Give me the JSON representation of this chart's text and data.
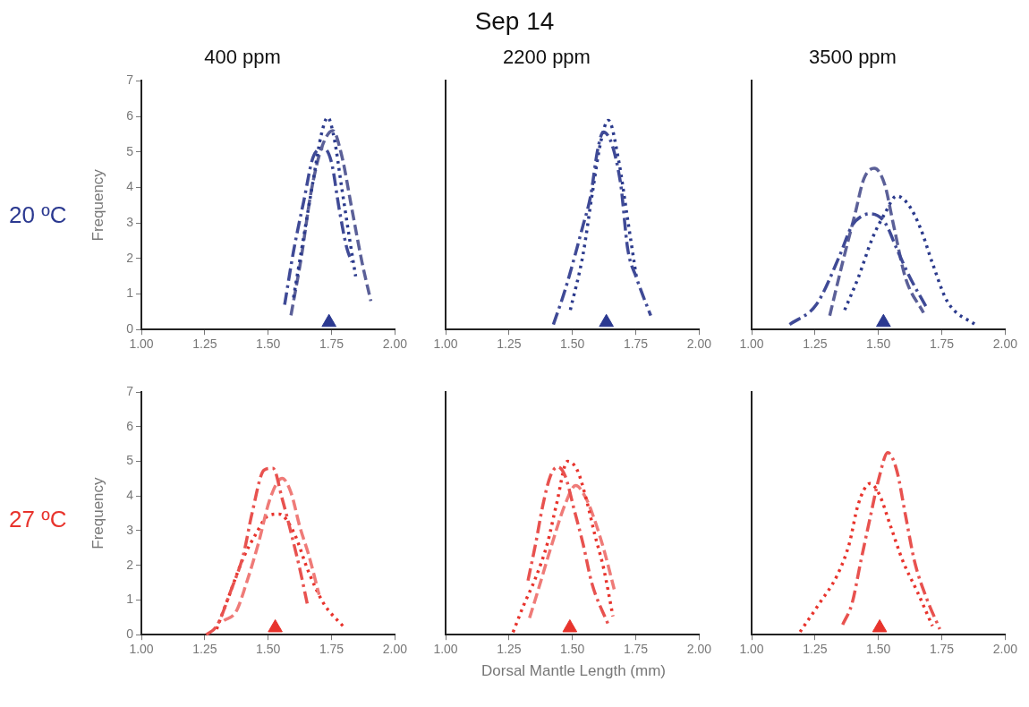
{
  "chart_data": [
    {
      "type": "line",
      "title": "400 ppm",
      "ylabel": "Frequency",
      "annotations": [
        "Sep 14",
        "20 ºC"
      ],
      "xlim": [
        1.0,
        2.0
      ],
      "xticks": [
        {
          "value": 1.0,
          "label": "1.00"
        },
        {
          "value": 1.25,
          "label": "1.25"
        },
        {
          "value": 1.5,
          "label": "1.50"
        },
        {
          "value": 1.75,
          "label": "1.75"
        },
        {
          "value": 2.0,
          "label": "2.00"
        }
      ],
      "ylim": [
        0,
        7
      ],
      "yticks": [
        0,
        1,
        2,
        3,
        4,
        5,
        6,
        7
      ],
      "series": [
        {
          "type": "line",
          "line_style": "dotted",
          "color": "#2b3a8c",
          "x": [
            1.6,
            1.64,
            1.68,
            1.71,
            1.735,
            1.76,
            1.79,
            1.82,
            1.845
          ],
          "values": [
            0.9,
            2.6,
            4.3,
            5.5,
            5.97,
            5.4,
            4.0,
            2.6,
            1.5
          ]
        },
        {
          "type": "line",
          "line_style": "dashed",
          "color": "#5b6098",
          "x": [
            1.59,
            1.63,
            1.67,
            1.71,
            1.755,
            1.79,
            1.83,
            1.87,
            1.905
          ],
          "values": [
            0.4,
            2.0,
            3.9,
            5.1,
            5.6,
            4.9,
            3.4,
            1.9,
            0.8
          ]
        },
        {
          "type": "line",
          "line_style": "dashdot",
          "color": "#3f4a96",
          "x": [
            1.565,
            1.6,
            1.64,
            1.68,
            1.72,
            1.75,
            1.78,
            1.81,
            1.83
          ],
          "values": [
            0.7,
            2.2,
            3.6,
            4.9,
            5.1,
            4.7,
            3.4,
            2.3,
            1.9
          ]
        },
        {
          "type": "scatter",
          "marker": "triangle",
          "color": "#2b3990",
          "x": [
            1.74
          ],
          "values": [
            0.2
          ]
        }
      ]
    },
    {
      "type": "line",
      "title": "2200 ppm",
      "tick_labels": "x",
      "xlim": [
        1.0,
        2.0
      ],
      "xticks": [
        {
          "value": 1.0,
          "label": "1.00"
        },
        {
          "value": 1.25,
          "label": "1.25"
        },
        {
          "value": 1.5,
          "label": "1.50"
        },
        {
          "value": 1.75,
          "label": "1.75"
        },
        {
          "value": 2.0,
          "label": "2.00"
        }
      ],
      "ylim": [
        0,
        7
      ],
      "yticks": [
        0,
        1,
        2,
        3,
        4,
        5,
        6,
        7
      ],
      "series": [
        {
          "type": "line",
          "line_style": "dashdot",
          "color": "#3f4a96",
          "x": [
            1.425,
            1.472,
            1.542,
            1.572,
            1.6,
            1.622,
            1.689,
            1.718,
            1.753,
            1.809
          ],
          "values": [
            0.14,
            1.13,
            2.93,
            3.76,
            5.07,
            5.56,
            4.17,
            2.28,
            1.45,
            0.39
          ]
        },
        {
          "type": "line",
          "line_style": "dotted",
          "color": "#2b3a8c",
          "x": [
            1.492,
            1.542,
            1.577,
            1.613,
            1.642,
            1.683,
            1.718,
            1.753
          ],
          "values": [
            0.55,
            2.11,
            3.76,
            5.32,
            5.89,
            4.74,
            3.1,
            1.45
          ]
        },
        {
          "type": "scatter",
          "marker": "triangle",
          "color": "#2b3990",
          "x": [
            1.634
          ],
          "values": [
            0.2
          ]
        }
      ]
    },
    {
      "type": "line",
      "title": "3500 ppm",
      "tick_labels": "x",
      "xlim": [
        1.0,
        2.0
      ],
      "xticks": [
        {
          "value": 1.0,
          "label": "1.00"
        },
        {
          "value": 1.25,
          "label": "1.25"
        },
        {
          "value": 1.5,
          "label": "1.50"
        },
        {
          "value": 1.75,
          "label": "1.75"
        },
        {
          "value": 2.0,
          "label": "2.00"
        }
      ],
      "ylim": [
        0,
        7
      ],
      "yticks": [
        0,
        1,
        2,
        3,
        4,
        5,
        6,
        7
      ],
      "series": [
        {
          "type": "line",
          "line_style": "dashdot",
          "color": "#3f4a96",
          "x": [
            1.15,
            1.256,
            1.349,
            1.396,
            1.431,
            1.467,
            1.525,
            1.572,
            1.619,
            1.689
          ],
          "values": [
            0.14,
            0.71,
            2.11,
            2.93,
            3.18,
            3.26,
            3.02,
            2.28,
            1.54,
            0.63
          ]
        },
        {
          "type": "line",
          "line_style": "dashed",
          "color": "#5b6098",
          "x": [
            1.308,
            1.361,
            1.408,
            1.443,
            1.484,
            1.525,
            1.56,
            1.607,
            1.678
          ],
          "values": [
            0.39,
            1.95,
            3.26,
            4.25,
            4.54,
            4.08,
            2.93,
            1.45,
            0.47
          ]
        },
        {
          "type": "line",
          "line_style": "dotted",
          "color": "#2b3a8c",
          "x": [
            1.367,
            1.42,
            1.478,
            1.525,
            1.572,
            1.619,
            1.666,
            1.713,
            1.771,
            1.889
          ],
          "values": [
            0.55,
            1.45,
            2.6,
            3.26,
            3.76,
            3.51,
            2.85,
            1.87,
            0.8,
            0.1
          ]
        },
        {
          "type": "scatter",
          "marker": "triangle",
          "color": "#2b3990",
          "x": [
            1.52
          ],
          "values": [
            0.2
          ]
        }
      ]
    },
    {
      "type": "line",
      "ylabel": "Frequency",
      "annotations": [
        "27 ºC"
      ],
      "xlim": [
        1.0,
        2.0
      ],
      "xticks": [
        {
          "value": 1.0,
          "label": "1.00"
        },
        {
          "value": 1.25,
          "label": "1.25"
        },
        {
          "value": 1.5,
          "label": "1.50"
        },
        {
          "value": 1.75,
          "label": "1.75"
        },
        {
          "value": 2.0,
          "label": "2.00"
        }
      ],
      "ylim": [
        0,
        7
      ],
      "yticks": [
        0,
        1,
        2,
        3,
        4,
        5,
        6,
        7
      ],
      "series": [
        {
          "type": "line",
          "line_style": "dashdot",
          "color": "#e8524f",
          "x": [
            1.256,
            1.297,
            1.355,
            1.402,
            1.437,
            1.484,
            1.519,
            1.555,
            1.59,
            1.625,
            1.654
          ],
          "values": [
            0,
            0.25,
            1.31,
            2.3,
            3.52,
            4.75,
            4.8,
            3.93,
            2.95,
            1.89,
            0.9
          ]
        },
        {
          "type": "line",
          "line_style": "dashed",
          "color": "#ef7b78",
          "x": [
            1.326,
            1.373,
            1.414,
            1.461,
            1.508,
            1.555,
            1.59,
            1.625,
            1.66,
            1.701
          ],
          "values": [
            0.41,
            0.66,
            1.48,
            2.62,
            3.93,
            4.51,
            4.1,
            3.11,
            2.3,
            1.15
          ]
        },
        {
          "type": "line",
          "line_style": "dotted",
          "color": "#e8332c",
          "x": [
            1.297,
            1.343,
            1.402,
            1.449,
            1.502,
            1.543,
            1.601,
            1.66,
            1.719,
            1.801
          ],
          "values": [
            0.16,
            1.07,
            2.21,
            2.87,
            3.44,
            3.48,
            2.95,
            1.8,
            0.9,
            0.2
          ]
        },
        {
          "type": "scatter",
          "marker": "triangle",
          "color": "#e8332c",
          "x": [
            1.528
          ],
          "values": [
            0.2
          ]
        }
      ]
    },
    {
      "type": "line",
      "xlabel": "Dorsal Mantle Length (mm)",
      "tick_labels": "x",
      "xlim": [
        1.0,
        2.0
      ],
      "xticks": [
        {
          "value": 1.0,
          "label": "1.00"
        },
        {
          "value": 1.25,
          "label": "1.25"
        },
        {
          "value": 1.5,
          "label": "1.50"
        },
        {
          "value": 1.75,
          "label": "1.75"
        },
        {
          "value": 2.0,
          "label": "2.00"
        }
      ],
      "ylim": [
        0,
        7
      ],
      "yticks": [
        0,
        1,
        2,
        3,
        4,
        5,
        6,
        7
      ],
      "series": [
        {
          "type": "line",
          "line_style": "dashdot",
          "color": "#e8524f",
          "x": [
            1.325,
            1.355,
            1.384,
            1.413,
            1.442,
            1.472,
            1.507,
            1.542,
            1.577,
            1.642
          ],
          "values": [
            1.56,
            2.62,
            3.75,
            4.57,
            4.84,
            4.57,
            3.61,
            2.62,
            1.48,
            0.28
          ]
        },
        {
          "type": "line",
          "line_style": "dotted",
          "color": "#e8332c",
          "x": [
            1.266,
            1.308,
            1.355,
            1.401,
            1.437,
            1.481,
            1.519,
            1.554,
            1.589,
            1.624,
            1.66
          ],
          "values": [
            0.07,
            0.85,
            1.64,
            2.62,
            3.75,
            5.0,
            4.75,
            3.93,
            2.87,
            1.89,
            0.53
          ]
        },
        {
          "type": "line",
          "line_style": "dashed",
          "color": "#ef7b78",
          "x": [
            1.331,
            1.366,
            1.413,
            1.472,
            1.513,
            1.554,
            1.589,
            1.624,
            1.665
          ],
          "values": [
            0.48,
            1.31,
            2.46,
            3.77,
            4.3,
            3.93,
            3.28,
            2.46,
            1.31
          ]
        },
        {
          "type": "scatter",
          "marker": "triangle",
          "color": "#e8332c",
          "x": [
            1.49
          ],
          "values": [
            0.2
          ]
        }
      ]
    },
    {
      "type": "line",
      "tick_labels": "x",
      "xlim": [
        1.0,
        2.0
      ],
      "xticks": [
        {
          "value": 1.0,
          "label": "1.00"
        },
        {
          "value": 1.25,
          "label": "1.25"
        },
        {
          "value": 1.5,
          "label": "1.50"
        },
        {
          "value": 1.75,
          "label": "1.75"
        },
        {
          "value": 2.0,
          "label": "2.00"
        }
      ],
      "ylim": [
        0,
        7
      ],
      "yticks": [
        0,
        1,
        2,
        3,
        4,
        5,
        6,
        7
      ],
      "series": [
        {
          "type": "line",
          "line_style": "dotted",
          "color": "#e8332c",
          "x": [
            1.191,
            1.267,
            1.338,
            1.385,
            1.42,
            1.467,
            1.502,
            1.549,
            1.596,
            1.654,
            1.713
          ],
          "values": [
            0.08,
            0.9,
            1.72,
            2.62,
            3.75,
            4.36,
            4.07,
            3.11,
            2.13,
            1.23,
            0.25
          ]
        },
        {
          "type": "line",
          "line_style": "dashdot",
          "color": "#e8524f",
          "x": [
            1.359,
            1.396,
            1.431,
            1.467,
            1.502,
            1.537,
            1.572,
            1.607,
            1.642,
            1.689,
            1.742
          ],
          "values": [
            0.29,
            0.9,
            2.13,
            3.36,
            4.51,
            5.25,
            4.75,
            3.44,
            2.13,
            1.07,
            0.16
          ]
        },
        {
          "type": "scatter",
          "marker": "triangle",
          "color": "#e8332c",
          "x": [
            1.505
          ],
          "values": [
            0.2
          ]
        }
      ]
    }
  ]
}
